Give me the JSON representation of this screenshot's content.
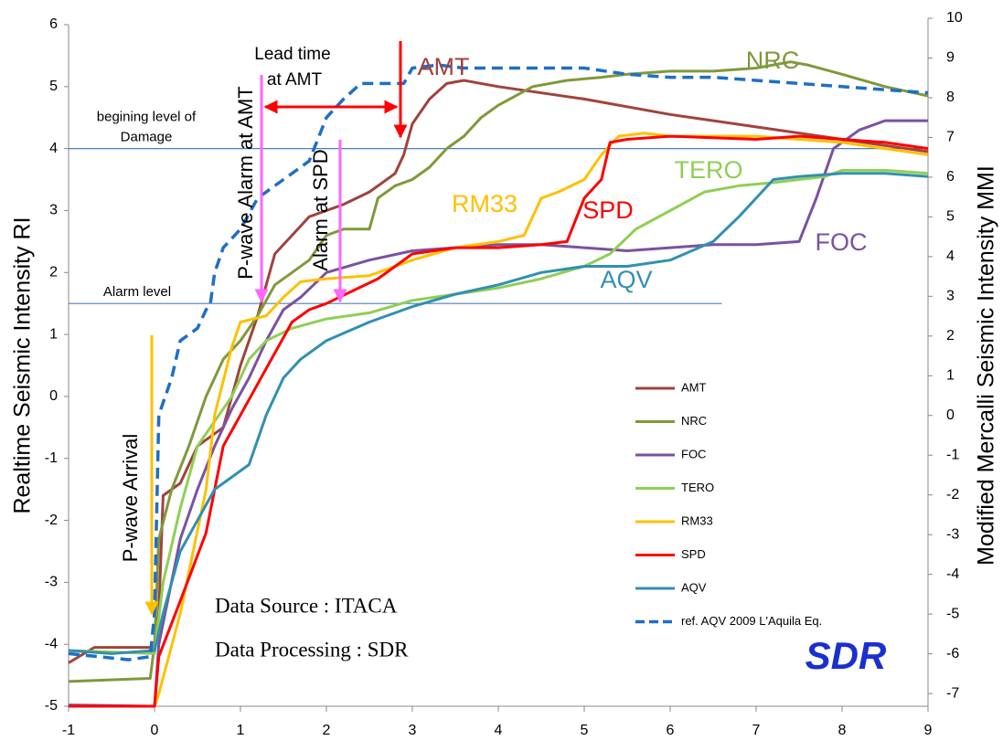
{
  "chart_data": {
    "type": "line",
    "y_label": "Realtime Seismic Intensity RI",
    "y2_label": "Modified Mercalli Seismic Intensity MMI",
    "xlim": [
      -1,
      9
    ],
    "xticks": [
      -1,
      0,
      1,
      2,
      3,
      4,
      5,
      6,
      7,
      8,
      9
    ],
    "ylim": [
      -5,
      6
    ],
    "yticks": [
      -5,
      -4,
      -3,
      -2,
      -1,
      0,
      1,
      2,
      3,
      4,
      5,
      6
    ],
    "y2lim": [
      -7.32,
      10
    ],
    "y2ticks": [
      -7,
      -6,
      -5,
      -4,
      -3,
      -2,
      -1,
      0,
      1,
      2,
      3,
      4,
      5,
      6,
      7,
      8,
      9,
      10
    ],
    "legend": "lower right",
    "reference_lines": [
      {
        "value": 1.5,
        "label": [
          "Alarm level"
        ],
        "color": "#4a7fc1"
      },
      {
        "value": 4,
        "label": [
          "begining level of",
          "Damage"
        ],
        "color": "#4a7fc1"
      }
    ],
    "annotations": [
      "P-wave Arrival",
      "P-wave Alarm at AMT",
      "Alarm at SPD",
      "Lead time",
      "at AMT",
      "Data Source : ITACA",
      "Data Processing : SDR",
      "SDR"
    ],
    "series": [
      {
        "name": "AMT",
        "color": "#a0433d",
        "x": [
          -1,
          -0.7,
          0,
          0.05,
          0.1,
          0.3,
          0.5,
          0.8,
          1.0,
          1.2,
          1.4,
          1.6,
          1.8,
          2.0,
          2.2,
          2.5,
          2.8,
          2.9,
          3.0,
          3.2,
          3.4,
          3.6,
          4.0,
          5.0,
          6.0,
          7.0,
          8.0,
          9.0
        ],
        "values": [
          -4.3,
          -4.05,
          -4.05,
          -3.5,
          -1.6,
          -1.4,
          -0.8,
          -0.5,
          0.5,
          1.3,
          2.3,
          2.6,
          2.9,
          3.0,
          3.1,
          3.3,
          3.6,
          3.9,
          4.4,
          4.8,
          5.05,
          5.1,
          5.0,
          4.8,
          4.55,
          4.35,
          4.15,
          3.95
        ]
      },
      {
        "name": "NRC",
        "color": "#80993b",
        "x": [
          -1,
          -0.05,
          0,
          0.05,
          0.2,
          0.4,
          0.6,
          0.8,
          1.0,
          1.2,
          1.4,
          1.6,
          1.8,
          2.0,
          2.2,
          2.5,
          2.6,
          2.8,
          3.0,
          3.2,
          3.4,
          3.6,
          3.8,
          4.0,
          4.4,
          4.8,
          5.2,
          5.5,
          6.0,
          6.5,
          7.0,
          7.4,
          7.6,
          8.0,
          8.5,
          9.0
        ],
        "values": [
          -4.6,
          -4.55,
          -4.0,
          -2.3,
          -1.5,
          -0.8,
          0,
          0.6,
          0.9,
          1.3,
          1.8,
          2.0,
          2.2,
          2.6,
          2.7,
          2.7,
          3.2,
          3.4,
          3.5,
          3.7,
          4.0,
          4.2,
          4.5,
          4.7,
          5.0,
          5.1,
          5.15,
          5.2,
          5.25,
          5.25,
          5.3,
          5.4,
          5.35,
          5.2,
          5.0,
          4.85
        ]
      },
      {
        "name": "FOC",
        "color": "#7a52a0",
        "x": [
          -1,
          0,
          0.05,
          0.3,
          0.5,
          0.7,
          0.9,
          1.1,
          1.3,
          1.5,
          1.7,
          2.0,
          2.5,
          3.0,
          3.5,
          4.0,
          4.5,
          5.0,
          5.5,
          6.0,
          6.5,
          7.0,
          7.5,
          7.7,
          7.9,
          8.2,
          8.5,
          9.0
        ],
        "values": [
          -4.98,
          -5.0,
          -4.0,
          -2.3,
          -1.5,
          -0.8,
          -0.2,
          0.3,
          0.9,
          1.4,
          1.6,
          2.0,
          2.2,
          2.35,
          2.4,
          2.45,
          2.45,
          2.4,
          2.35,
          2.4,
          2.45,
          2.45,
          2.5,
          3.2,
          4.0,
          4.3,
          4.45,
          4.45
        ]
      },
      {
        "name": "TERO",
        "color": "#8fcf55",
        "x": [
          -1,
          0,
          0.1,
          0.3,
          0.5,
          0.7,
          0.9,
          1.1,
          1.3,
          1.6,
          2.0,
          2.5,
          3.0,
          3.5,
          4.0,
          4.5,
          5.0,
          5.3,
          5.6,
          6.0,
          6.4,
          6.8,
          7.2,
          7.5,
          7.8,
          8.0,
          8.5,
          9.0
        ],
        "values": [
          -4.1,
          -4.15,
          -3.0,
          -1.8,
          -0.8,
          -0.4,
          0,
          0.6,
          0.9,
          1.1,
          1.25,
          1.35,
          1.55,
          1.65,
          1.75,
          1.9,
          2.1,
          2.3,
          2.7,
          3.0,
          3.3,
          3.4,
          3.45,
          3.5,
          3.55,
          3.65,
          3.65,
          3.6
        ]
      },
      {
        "name": "RM33",
        "color": "#ffc000",
        "x": [
          -1,
          0,
          0.05,
          0.3,
          0.6,
          0.7,
          0.9,
          1.0,
          1.3,
          1.5,
          1.7,
          2.0,
          2.5,
          3.0,
          3.5,
          4.0,
          4.3,
          4.5,
          4.7,
          5.0,
          5.2,
          5.4,
          5.7,
          6.0,
          7.0,
          7.5,
          8.0,
          8.5,
          9.0
        ],
        "values": [
          -5.0,
          -5.0,
          -4.8,
          -3.5,
          -1.5,
          -0.3,
          0.8,
          1.2,
          1.3,
          1.6,
          1.85,
          1.9,
          1.95,
          2.2,
          2.4,
          2.5,
          2.6,
          3.2,
          3.3,
          3.5,
          3.9,
          4.2,
          4.25,
          4.2,
          4.2,
          4.15,
          4.1,
          4.0,
          3.9
        ]
      },
      {
        "name": "SPD",
        "color": "#ff0000",
        "x": [
          -1,
          0,
          0.05,
          0.3,
          0.6,
          0.8,
          1.0,
          1.2,
          1.4,
          1.6,
          1.8,
          2.0,
          2.3,
          2.6,
          3.0,
          3.5,
          4.0,
          4.5,
          4.8,
          5.0,
          5.2,
          5.3,
          5.5,
          6.0,
          7.0,
          7.5,
          8.0,
          8.5,
          9.0
        ],
        "values": [
          -5.0,
          -5.0,
          -4.2,
          -3.3,
          -2.2,
          -0.8,
          -0.3,
          0.2,
          0.7,
          1.2,
          1.4,
          1.5,
          1.7,
          1.9,
          2.3,
          2.4,
          2.4,
          2.45,
          2.5,
          3.2,
          3.5,
          4.1,
          4.15,
          4.2,
          4.15,
          4.2,
          4.15,
          4.1,
          4.0
        ]
      },
      {
        "name": "AQV",
        "color": "#3190b0",
        "x": [
          -1,
          -0.5,
          0,
          0.1,
          0.3,
          0.5,
          0.7,
          0.9,
          1.1,
          1.3,
          1.5,
          1.7,
          2.0,
          2.5,
          3.0,
          3.5,
          4.0,
          4.5,
          5.0,
          5.5,
          6.0,
          6.5,
          6.8,
          7.0,
          7.2,
          7.5,
          8.0,
          8.5,
          9.0
        ],
        "values": [
          -4.1,
          -4.15,
          -4.1,
          -3.5,
          -2.5,
          -2.0,
          -1.5,
          -1.3,
          -1.1,
          -0.3,
          0.3,
          0.6,
          0.9,
          1.2,
          1.45,
          1.65,
          1.8,
          2.0,
          2.1,
          2.1,
          2.2,
          2.5,
          2.9,
          3.2,
          3.5,
          3.55,
          3.6,
          3.6,
          3.55
        ]
      },
      {
        "name": "ref. AQV 2009 L'Aquila Eq.",
        "color": "#1f6fc4",
        "dashed": true,
        "x": [
          -1,
          -0.3,
          -0.05,
          0,
          0.05,
          0.2,
          0.3,
          0.5,
          0.6,
          0.65,
          0.7,
          0.8,
          1.0,
          1.2,
          1.4,
          1.6,
          1.8,
          2.0,
          2.2,
          2.4,
          2.7,
          2.9,
          3.0,
          3.3,
          3.6,
          4.0,
          5.0,
          5.5,
          6.0,
          6.5,
          7.0,
          8.0,
          9.0
        ],
        "values": [
          -4.15,
          -4.25,
          -4.2,
          -3.5,
          -0.3,
          0.3,
          0.9,
          1.1,
          1.4,
          1.5,
          2.0,
          2.4,
          2.7,
          3.2,
          3.4,
          3.6,
          3.8,
          4.5,
          4.8,
          5.05,
          5.05,
          5.05,
          5.3,
          5.35,
          5.3,
          5.3,
          5.3,
          5.2,
          5.15,
          5.15,
          5.1,
          5.0,
          4.9
        ]
      }
    ]
  }
}
